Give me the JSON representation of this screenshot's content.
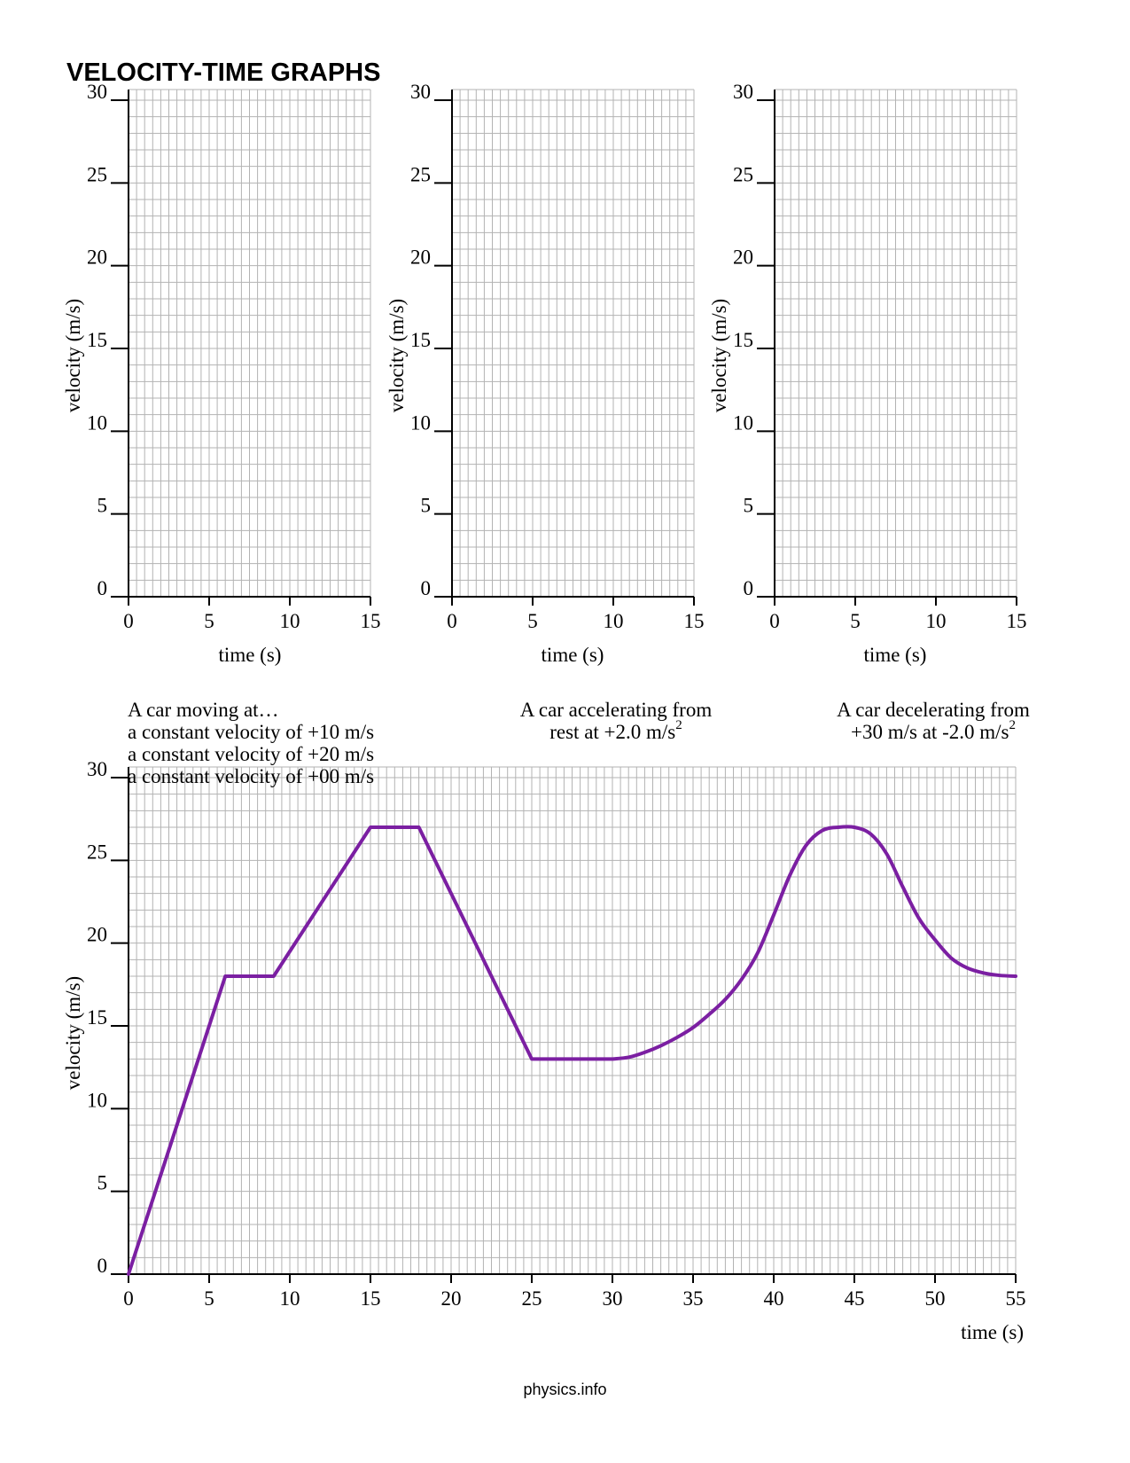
{
  "title": "VELOCITY-TIME GRAPHS",
  "footer": "physics.info",
  "colors": {
    "grid": "#b3b3b3",
    "axis": "#000000",
    "line": "#7b1fa2"
  },
  "captions": [
    {
      "lines": [
        "A car moving at…",
        "a constant velocity of +10 m/s",
        "a constant velocity of +20 m/s",
        "a constant velocity of +00 m/s"
      ]
    },
    {
      "lines": [
        "A car  accelerating from",
        "rest at +2.0 m/s"
      ],
      "superscript": "2"
    },
    {
      "lines": [
        "A car decelerating from",
        "+30 m/s at -2.0 m/s"
      ],
      "superscript": "2"
    }
  ],
  "chart_data": [
    {
      "type": "line",
      "title": "",
      "xlabel": "time (s)",
      "ylabel": "velocity (m/s)",
      "xlim": [
        0,
        15
      ],
      "ylim": [
        0,
        30
      ],
      "xticks": [
        0,
        5,
        10,
        15
      ],
      "yticks": [
        0,
        5,
        10,
        15,
        20,
        25,
        30
      ],
      "grid": true,
      "series": []
    },
    {
      "type": "line",
      "title": "",
      "xlabel": "time (s)",
      "ylabel": "velocity (m/s)",
      "xlim": [
        0,
        15
      ],
      "ylim": [
        0,
        30
      ],
      "xticks": [
        0,
        5,
        10,
        15
      ],
      "yticks": [
        0,
        5,
        10,
        15,
        20,
        25,
        30
      ],
      "grid": true,
      "series": []
    },
    {
      "type": "line",
      "title": "",
      "xlabel": "time (s)",
      "ylabel": "velocity (m/s)",
      "xlim": [
        0,
        15
      ],
      "ylim": [
        0,
        30
      ],
      "xticks": [
        0,
        5,
        10,
        15
      ],
      "yticks": [
        0,
        5,
        10,
        15,
        20,
        25,
        30
      ],
      "grid": true,
      "series": []
    },
    {
      "type": "line",
      "title": "",
      "xlabel": "time (s)",
      "ylabel": "velocity (m/s)",
      "xlim": [
        0,
        55
      ],
      "ylim": [
        0,
        30
      ],
      "xticks": [
        0,
        5,
        10,
        15,
        20,
        25,
        30,
        35,
        40,
        45,
        50,
        55
      ],
      "yticks": [
        0,
        5,
        10,
        15,
        20,
        25,
        30
      ],
      "grid": true,
      "series": [
        {
          "x": [
            0,
            6,
            9,
            15,
            18,
            25,
            30,
            31,
            32,
            33,
            34,
            35,
            36,
            37,
            38,
            39,
            40,
            41,
            42,
            43,
            44,
            45,
            46,
            47,
            48,
            49,
            50,
            51,
            52,
            53,
            54,
            55
          ],
          "y": [
            0,
            18,
            18,
            27,
            27,
            13,
            13,
            13.1,
            13.4,
            13.8,
            14.3,
            14.9,
            15.7,
            16.6,
            17.8,
            19.4,
            21.7,
            24.1,
            25.9,
            26.8,
            27.0,
            27.0,
            26.6,
            25.4,
            23.4,
            21.5,
            20.2,
            19.1,
            18.5,
            18.2,
            18.05,
            18.0
          ]
        }
      ]
    }
  ]
}
